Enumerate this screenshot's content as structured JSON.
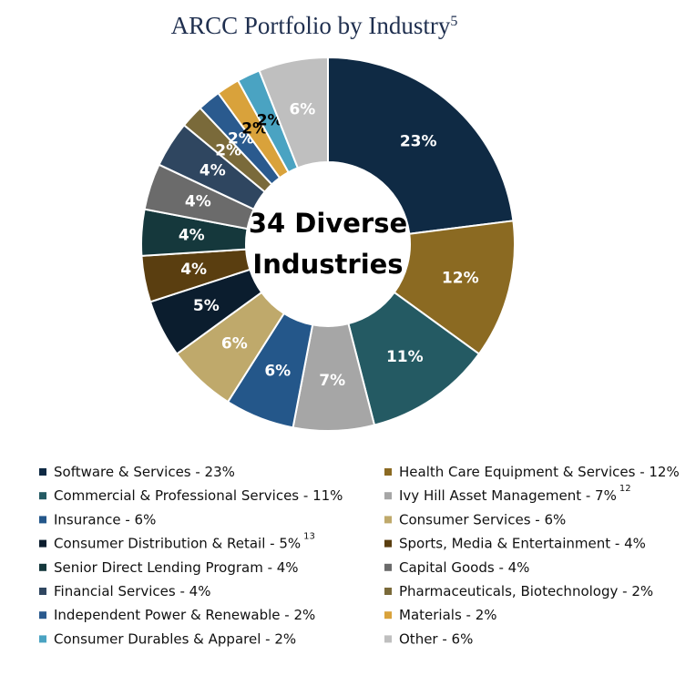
{
  "chart_data": {
    "type": "donut",
    "title": "ARCC Portfolio by Industry",
    "title_superscript": "5",
    "center_text": [
      "34 Diverse",
      "Industries"
    ],
    "categories": [
      "Software & Services - 23%",
      "Health Care Equipment & Services - 12%",
      "Commercial & Professional Services - 11%",
      "Ivy Hill Asset Management  - 7%",
      "Insurance - 6%",
      "Consumer Services - 6%",
      "Consumer Distribution & Retail  - 5%",
      "Sports, Media & Entertainment - 4%",
      "Senior Direct Lending Program - 4%",
      "Capital Goods - 4%",
      "Financial Services - 4%",
      "Pharmaceuticals, Biotechnology  - 2%",
      "Independent Power & Renewable - 2%",
      "Materials - 2%",
      "Consumer Durables & Apparel - 2%",
      "Other - 6%"
    ],
    "category_superscripts": [
      null,
      null,
      null,
      "12",
      null,
      null,
      "13",
      null,
      null,
      null,
      null,
      null,
      null,
      null,
      null,
      null
    ],
    "values": [
      23,
      12,
      11,
      7,
      6,
      6,
      5,
      4,
      4,
      4,
      4,
      2,
      2,
      2,
      2,
      6
    ],
    "value_labels": [
      "23%",
      "12%",
      "11%",
      "7%",
      "6%",
      "6%",
      "5%",
      "4%",
      "4%",
      "4%",
      "4%",
      "2%",
      "2%",
      "2%",
      "2%",
      "6%"
    ],
    "colors": [
      "#0f2a44",
      "#8b6a22",
      "#245a63",
      "#a6a6a6",
      "#24578a",
      "#bfa96b",
      "#0b1d2e",
      "#5a3e10",
      "#15383c",
      "#6b6b6b",
      "#2f4660",
      "#7a6a3a",
      "#2a5a8e",
      "#d9a23b",
      "#4aa3c2",
      "#bfbfbf"
    ],
    "label_colors": [
      "#fff",
      "#fff",
      "#fff",
      "#fff",
      "#fff",
      "#fff",
      "#fff",
      "#fff",
      "#fff",
      "#fff",
      "#fff",
      "#fff",
      "#fff",
      "#000",
      "#000",
      "#fff"
    ]
  }
}
